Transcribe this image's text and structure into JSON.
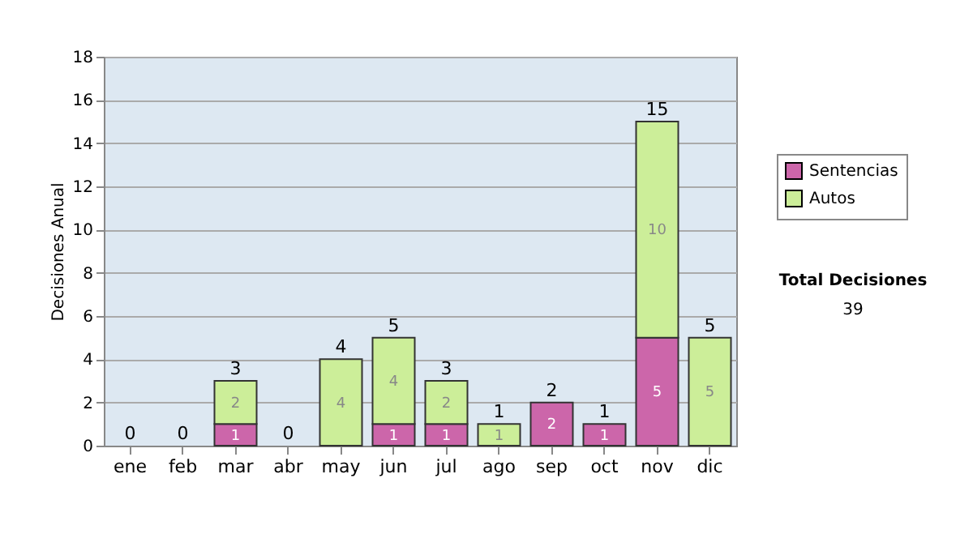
{
  "chart_data": {
    "type": "bar",
    "stacked": true,
    "ylabel": "Decisiones Anual",
    "categories": [
      "ene",
      "feb",
      "mar",
      "abr",
      "may",
      "jun",
      "jul",
      "ago",
      "sep",
      "oct",
      "nov",
      "dic"
    ],
    "series": [
      {
        "name": "Sentencias",
        "color": "#cc66aa",
        "values": [
          0,
          0,
          1,
          0,
          0,
          1,
          1,
          0,
          2,
          1,
          5,
          0
        ],
        "value_labels": [
          null,
          null,
          "1",
          null,
          null,
          "1",
          "1",
          null,
          "2",
          "1",
          "5",
          null
        ]
      },
      {
        "name": "Autos",
        "color": "#ccee99",
        "values": [
          0,
          0,
          2,
          0,
          4,
          4,
          2,
          1,
          0,
          0,
          10,
          5
        ],
        "value_labels": [
          null,
          null,
          "2",
          null,
          "4",
          "4",
          "2",
          "1",
          null,
          null,
          "10",
          "5"
        ]
      }
    ],
    "totals": [
      "0",
      "0",
      "3",
      "0",
      "4",
      "5",
      "3",
      "1",
      "2",
      "1",
      "15",
      "5"
    ],
    "ylim": [
      0,
      18
    ],
    "yticks": [
      0,
      2,
      4,
      6,
      8,
      10,
      12,
      14,
      16,
      18
    ],
    "grid": "y",
    "legend": "right",
    "annotations": [
      "Total Decisiones",
      "39"
    ]
  }
}
